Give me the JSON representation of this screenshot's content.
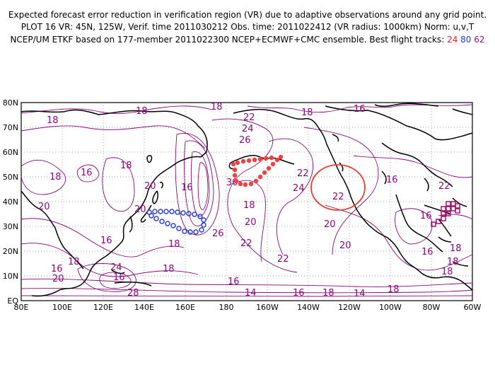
{
  "header": {
    "line1": "Expected forecast error reduction in verification region (VR) due to adaptive observations around any grid point.",
    "line2": "PLOT 16 VR: 45N, 125W, Verif. time 2011030212 Obs. time: 2011022412 (VR radius: 1000km) Norm: u,v,T",
    "line3_prefix": "NCEP/UM ETKF based on 177-member 2011022300 NCEP+ECMWF+CMC ensemble. Best flight tracks:",
    "track_a": "24",
    "track_b": "80",
    "track_c": "62"
  },
  "map": {
    "x_ticks": [
      "80E",
      "100E",
      "120E",
      "140E",
      "160E",
      "180",
      "160W",
      "140W",
      "120W",
      "100W",
      "80W",
      "60W"
    ],
    "y_ticks": [
      "EQ",
      "10N",
      "20N",
      "30N",
      "40N",
      "50N",
      "60N",
      "70N",
      "80N"
    ],
    "contour_labels": [
      "18",
      "18",
      "18",
      "22",
      "24",
      "26",
      "18",
      "16",
      "18",
      "16",
      "18",
      "16",
      "20",
      "30",
      "22",
      "20",
      "16",
      "24",
      "22",
      "22",
      "16",
      "20",
      "18",
      "20",
      "26",
      "22",
      "20",
      "20",
      "18",
      "18",
      "16",
      "18",
      "16",
      "18",
      "22",
      "18",
      "16",
      "24",
      "18",
      "16",
      "16",
      "14",
      "16",
      "18",
      "14",
      "18",
      "20",
      "28"
    ],
    "verification_region": {
      "center": "45N, 125W",
      "radius": "1000km"
    },
    "colors": {
      "contour": "#8b0a7a",
      "vr_circle": "#e8402a",
      "track_24": "#f04040",
      "track_80": "#2a40d0",
      "track_62": "#a0106a"
    }
  }
}
